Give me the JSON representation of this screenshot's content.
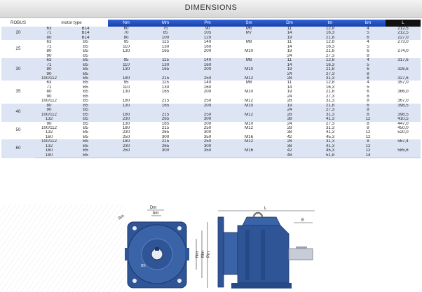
{
  "header": {
    "title": "DIMENSIONS"
  },
  "columns": [
    "ROBUS",
    "motor type",
    "",
    "Nm",
    "Mm",
    "Pm",
    "Sm",
    "Dm",
    "tm",
    "bm",
    "L"
  ],
  "groups": [
    {
      "robus": "20",
      "rows": [
        [
          "63",
          "B14",
          "60",
          "75",
          "90",
          "M6",
          "11",
          "12,8",
          "4",
          "212,5"
        ],
        [
          "71",
          "B14",
          "70",
          "85",
          "105",
          "M7",
          "14",
          "16,3",
          "5",
          "212,5"
        ],
        [
          "80",
          "B14",
          "80",
          "100",
          "120",
          "",
          "19",
          "21,8",
          "6",
          "227,0"
        ]
      ]
    },
    {
      "robus": "25",
      "rows": [
        [
          "63",
          "B5",
          "95",
          "115",
          "140",
          "M8",
          "11",
          "12,8",
          "4",
          "273,0"
        ],
        [
          "71",
          "B5",
          "110",
          "130",
          "160",
          "",
          "14",
          "16,3",
          "5",
          ""
        ],
        [
          "80",
          "B5",
          "130",
          "165",
          "200",
          "M10",
          "19",
          "21,8",
          "6",
          "274,0"
        ],
        [
          "90",
          "B5",
          "",
          "",
          "",
          "",
          "24",
          "27,3",
          "8",
          ""
        ]
      ]
    },
    {
      "robus": "30",
      "rows": [
        [
          "63",
          "B5",
          "95",
          "115",
          "140",
          "M8",
          "11",
          "12,8",
          "4",
          "317,6"
        ],
        [
          "71",
          "B5",
          "110",
          "130",
          "160",
          "",
          "14",
          "16,3",
          "5",
          ""
        ],
        [
          "80",
          "B5",
          "130",
          "165",
          "200",
          "M10",
          "19",
          "21,8",
          "6",
          "326,6"
        ],
        [
          "90",
          "B5",
          "",
          "",
          "",
          "",
          "24",
          "27,3",
          "8",
          ""
        ],
        [
          "100/112",
          "B5",
          "180",
          "215",
          "250",
          "M12",
          "28",
          "31,3",
          "8",
          "327,6"
        ]
      ]
    },
    {
      "robus": "35",
      "rows": [
        [
          "63",
          "B5",
          "95",
          "115",
          "140",
          "M8",
          "11",
          "12,8",
          "4",
          "357,0"
        ],
        [
          "71",
          "B5",
          "110",
          "130",
          "160",
          "",
          "14",
          "16,3",
          "5",
          ""
        ],
        [
          "80",
          "B5",
          "130",
          "165",
          "200",
          "M10",
          "19",
          "21,8",
          "6",
          "366,0"
        ],
        [
          "90",
          "B5",
          "",
          "",
          "",
          "",
          "24",
          "27,3",
          "8",
          ""
        ],
        [
          "100/112",
          "B5",
          "180",
          "215",
          "250",
          "M12",
          "28",
          "31,3",
          "8",
          "367,0"
        ]
      ]
    },
    {
      "robus": "40",
      "rows": [
        [
          "80",
          "B5",
          "130",
          "165",
          "200",
          "M10",
          "19",
          "21,8",
          "6",
          "398,5"
        ],
        [
          "90",
          "B5",
          "",
          "",
          "",
          "",
          "24",
          "27,3",
          "8",
          ""
        ],
        [
          "100/112",
          "B5",
          "180",
          "215",
          "250",
          "M12",
          "28",
          "31,3",
          "8",
          "398,5"
        ],
        [
          "132",
          "B5",
          "230",
          "265",
          "300",
          "",
          "38",
          "41,3",
          "12",
          "410,5"
        ]
      ]
    },
    {
      "robus": "50",
      "rows": [
        [
          "90",
          "B5",
          "130",
          "165",
          "200",
          "M10",
          "24",
          "27,3",
          "8",
          "447,0"
        ],
        [
          "100/112",
          "B5",
          "180",
          "215",
          "250",
          "M12",
          "28",
          "31,3",
          "8",
          "450,0"
        ],
        [
          "132",
          "B5",
          "230",
          "265",
          "300",
          "",
          "38",
          "41,3",
          "12",
          "520,0"
        ],
        [
          "160",
          "B5",
          "250",
          "300",
          "350",
          "M16",
          "42",
          "45,3",
          "12",
          ""
        ]
      ]
    },
    {
      "robus": "60",
      "rows": [
        [
          "100/112",
          "B5",
          "180",
          "215",
          "250",
          "M12",
          "28",
          "31,3",
          "8",
          "567,4"
        ],
        [
          "132",
          "B5",
          "230",
          "265",
          "300",
          "",
          "38",
          "41,3",
          "12",
          ""
        ],
        [
          "160",
          "B5",
          "250",
          "300",
          "350",
          "M16",
          "42",
          "45,3",
          "12",
          "585,6"
        ],
        [
          "180",
          "B5",
          "",
          "",
          "",
          "",
          "48",
          "51,8",
          "14",
          ""
        ]
      ]
    }
  ],
  "drawing": {
    "labels": {
      "Dm": "Dm",
      "bm": "bm",
      "Sm": "Sm",
      "tm": "tm",
      "Nm": "Nm",
      "Mm": "Mm",
      "Pm": "Pm",
      "L": "L",
      "E": "E"
    },
    "colors": {
      "body": "#2f5597",
      "dark": "#1c3564",
      "light": "#5b7fc4",
      "hatch": "#cfd6e4"
    }
  }
}
